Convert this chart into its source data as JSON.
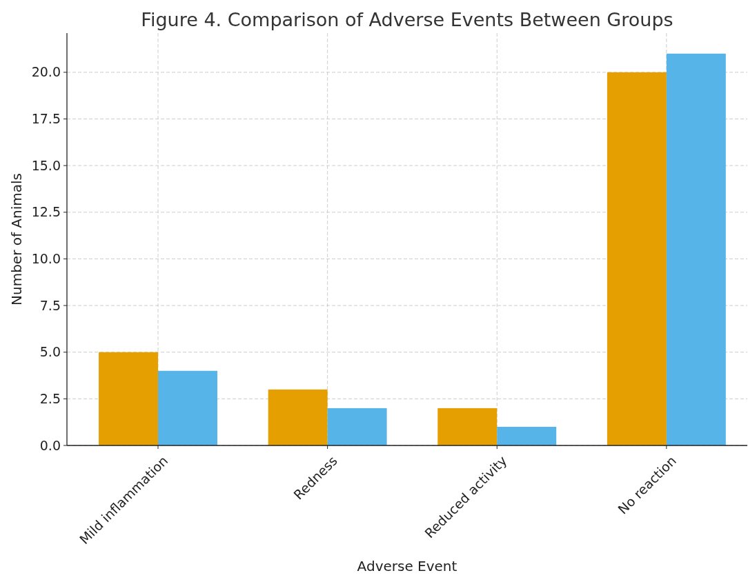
{
  "chart_data": {
    "type": "bar",
    "title": "Figure 4. Comparison of Adverse Events Between Groups",
    "xlabel": "Adverse Event",
    "ylabel": "Number of Animals",
    "categories": [
      "Mild inflammation",
      "Redness",
      "Reduced activity",
      "No reaction"
    ],
    "series": [
      {
        "color": "#e69f00",
        "values": [
          5,
          3,
          2,
          20
        ]
      },
      {
        "color": "#56b4e9",
        "values": [
          4,
          2,
          1,
          21
        ]
      }
    ],
    "ylim": [
      0,
      22.1
    ],
    "yticks": [
      {
        "value": 0,
        "label": "0.0"
      },
      {
        "value": 2.5,
        "label": "2.5"
      },
      {
        "value": 5,
        "label": "5.0"
      },
      {
        "value": 7.5,
        "label": "7.5"
      },
      {
        "value": 10,
        "label": "10.0"
      },
      {
        "value": 12.5,
        "label": "12.5"
      },
      {
        "value": 15,
        "label": "15.0"
      },
      {
        "value": 17.5,
        "label": "17.5"
      },
      {
        "value": 20,
        "label": "20.0"
      }
    ],
    "grid": true
  }
}
